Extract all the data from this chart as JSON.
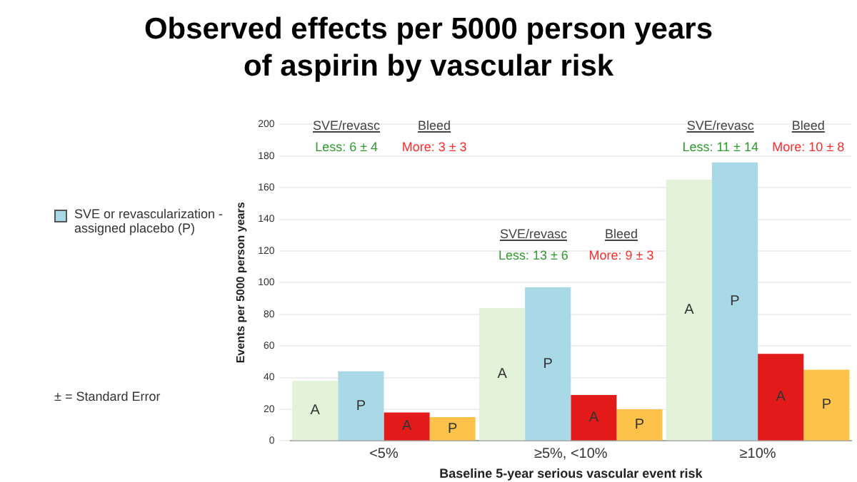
{
  "chart_data": {
    "type": "bar",
    "title": "Observed effects per 5000 person years of aspirin by vascular risk",
    "xlabel": "Baseline 5-year serious vascular event risk",
    "ylabel": "Events per 5000 person years",
    "categories": [
      "<5%",
      "≥5%, <10%",
      "≥10%"
    ],
    "series": [
      {
        "color": "#e2f3d9",
        "values": [
          38,
          84,
          165
        ],
        "value_labels": [
          "A",
          "A",
          "A"
        ]
      },
      {
        "name": "SVE or revascularization - assigned placebo (P)",
        "color": "#a9d8e6",
        "values": [
          44,
          97,
          176
        ],
        "value_labels": [
          "P",
          "P",
          "P"
        ]
      },
      {
        "color": "#e21a1a",
        "values": [
          18,
          29,
          55
        ],
        "value_labels": [
          "A",
          "A",
          "A"
        ]
      },
      {
        "color": "#fcc24a",
        "values": [
          15,
          20,
          45
        ],
        "value_labels": [
          "P",
          "P",
          "P"
        ]
      }
    ],
    "ylim": [
      0,
      200
    ],
    "yticks": [
      0,
      20,
      40,
      60,
      80,
      100,
      120,
      140,
      160,
      180,
      200
    ],
    "grid": "y",
    "legend": "left",
    "annotations": [
      "SVE/revasc",
      "Bleed",
      "Less: 6 ± 4",
      "More: 3 ± 3",
      "SVE/revasc",
      "Bleed",
      "Less: 13 ± 6",
      "More: 9 ± 3",
      "SVE/revasc",
      "Bleed",
      "Less: 11 ± 14",
      "More: 10 ± 8",
      "± = Standard Error"
    ]
  }
}
